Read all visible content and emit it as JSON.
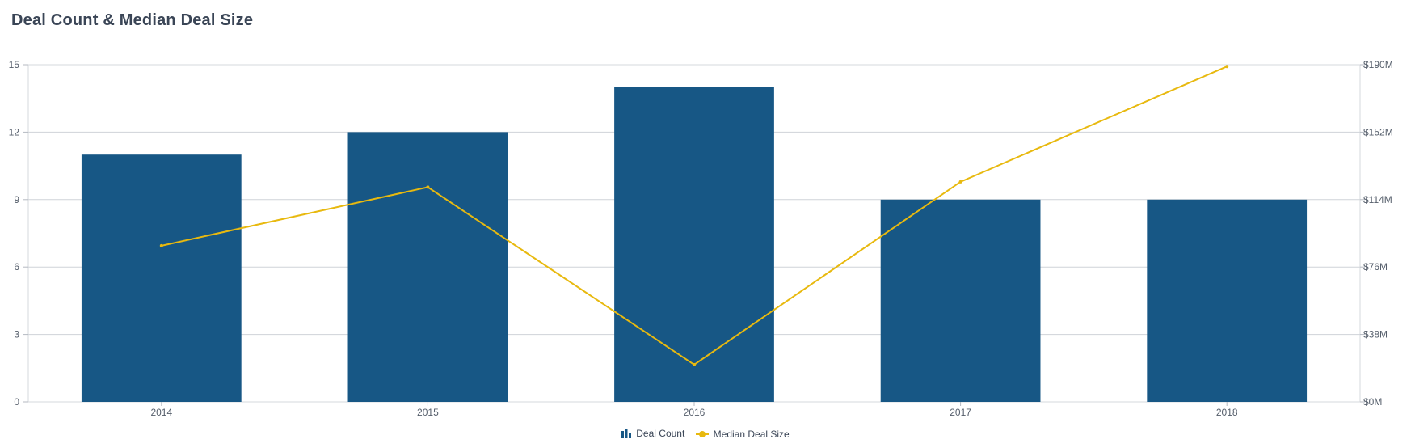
{
  "chart_data": {
    "type": "bar",
    "title": "Deal Count & Median Deal Size",
    "categories": [
      "2014",
      "2015",
      "2016",
      "2017",
      "2018"
    ],
    "series": [
      {
        "name": "Deal Count",
        "type": "bar",
        "axis": "left",
        "color": "#175785",
        "values": [
          11,
          12,
          14,
          9,
          9
        ]
      },
      {
        "name": "Median Deal Size",
        "type": "line",
        "axis": "right",
        "color": "#e8b90f",
        "values": [
          88,
          121,
          21,
          124,
          189
        ]
      }
    ],
    "y_left": {
      "ylim": [
        0,
        15
      ],
      "ticks": [
        "0",
        "3",
        "6",
        "9",
        "12",
        "15"
      ]
    },
    "y_right": {
      "ylim": [
        0,
        190
      ],
      "unit": "$M",
      "ticks": [
        "$0M",
        "$38M",
        "$76M",
        "$114M",
        "$152M",
        "$190M"
      ]
    },
    "grid": true,
    "legend_position": "bottom-center"
  }
}
